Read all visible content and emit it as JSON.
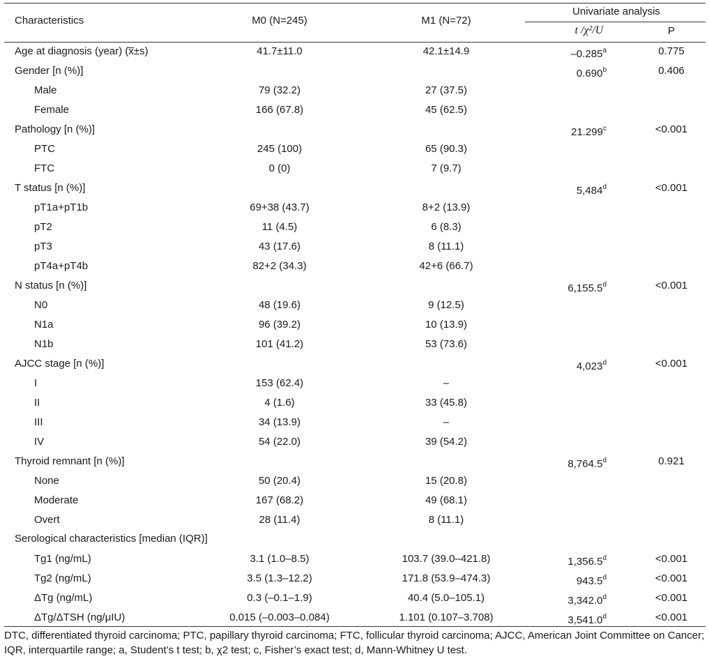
{
  "header": {
    "characteristics": "Characteristics",
    "m0": "M0 (N=245)",
    "m1": "M1 (N=72)",
    "univariate": "Univariate analysis",
    "stat_label": "t /χ²/U",
    "p_label": "P"
  },
  "rows": [
    {
      "label": "Age at diagnosis (year) (x̅±s)",
      "indent": false,
      "m0": "41.7±11.0",
      "m1": "42.1±14.9",
      "stat": "–0.285",
      "sup": "a",
      "p": "0.775"
    },
    {
      "label": "Gender [n (%)]",
      "indent": false,
      "m0": "",
      "m1": "",
      "stat": "0.690",
      "sup": "b",
      "p": "0.406"
    },
    {
      "label": "Male",
      "indent": true,
      "m0": "79 (32.2)",
      "m1": "27 (37.5)",
      "stat": "",
      "sup": "",
      "p": ""
    },
    {
      "label": "Female",
      "indent": true,
      "m0": "166 (67.8)",
      "m1": "45 (62.5)",
      "stat": "",
      "sup": "",
      "p": ""
    },
    {
      "label": "Pathology [n (%)]",
      "indent": false,
      "m0": "",
      "m1": "",
      "stat": "21.299",
      "sup": "c",
      "p": "<0.001"
    },
    {
      "label": "PTC",
      "indent": true,
      "m0": "245 (100)",
      "m1": "65 (90.3)",
      "stat": "",
      "sup": "",
      "p": ""
    },
    {
      "label": "FTC",
      "indent": true,
      "m0": "0 (0)",
      "m1": "7 (9.7)",
      "stat": "",
      "sup": "",
      "p": ""
    },
    {
      "label": "T status [n (%)]",
      "indent": false,
      "m0": "",
      "m1": "",
      "stat": "5,484",
      "sup": "d",
      "p": "<0.001"
    },
    {
      "label": "pT1a+pT1b",
      "indent": true,
      "m0": "69+38 (43.7)",
      "m1": "8+2 (13.9)",
      "stat": "",
      "sup": "",
      "p": ""
    },
    {
      "label": "pT2",
      "indent": true,
      "m0": "11 (4.5)",
      "m1": "6 (8.3)",
      "stat": "",
      "sup": "",
      "p": ""
    },
    {
      "label": "pT3",
      "indent": true,
      "m0": "43 (17.6)",
      "m1": "8 (11.1)",
      "stat": "",
      "sup": "",
      "p": ""
    },
    {
      "label": "pT4a+pT4b",
      "indent": true,
      "m0": "82+2 (34.3)",
      "m1": "42+6 (66.7)",
      "stat": "",
      "sup": "",
      "p": ""
    },
    {
      "label": "N status [n (%)]",
      "indent": false,
      "m0": "",
      "m1": "",
      "stat": "6,155.5",
      "sup": "d",
      "p": "<0.001"
    },
    {
      "label": "N0",
      "indent": true,
      "m0": "48 (19.6)",
      "m1": "9 (12.5)",
      "stat": "",
      "sup": "",
      "p": ""
    },
    {
      "label": "N1a",
      "indent": true,
      "m0": "96 (39.2)",
      "m1": "10 (13.9)",
      "stat": "",
      "sup": "",
      "p": ""
    },
    {
      "label": "N1b",
      "indent": true,
      "m0": "101 (41.2)",
      "m1": "53 (73.6)",
      "stat": "",
      "sup": "",
      "p": ""
    },
    {
      "label": "AJCC stage [n (%)]",
      "indent": false,
      "m0": "",
      "m1": "",
      "stat": "4,023",
      "sup": "d",
      "p": "<0.001"
    },
    {
      "label": "I",
      "indent": true,
      "m0": "153 (62.4)",
      "m1": "–",
      "stat": "",
      "sup": "",
      "p": ""
    },
    {
      "label": "II",
      "indent": true,
      "m0": "4 (1.6)",
      "m1": "33 (45.8)",
      "stat": "",
      "sup": "",
      "p": ""
    },
    {
      "label": "III",
      "indent": true,
      "m0": "34 (13.9)",
      "m1": "–",
      "stat": "",
      "sup": "",
      "p": ""
    },
    {
      "label": "IV",
      "indent": true,
      "m0": "54 (22.0)",
      "m1": "39 (54.2)",
      "stat": "",
      "sup": "",
      "p": ""
    },
    {
      "label": "Thyroid remnant [n (%)]",
      "indent": false,
      "m0": "",
      "m1": "",
      "stat": "8,764.5",
      "sup": "d",
      "p": "0.921"
    },
    {
      "label": "None",
      "indent": true,
      "m0": "50 (20.4)",
      "m1": "15 (20.8)",
      "stat": "",
      "sup": "",
      "p": ""
    },
    {
      "label": "Moderate",
      "indent": true,
      "m0": "167 (68.2)",
      "m1": "49 (68.1)",
      "stat": "",
      "sup": "",
      "p": ""
    },
    {
      "label": "Overt",
      "indent": true,
      "m0": "28 (11.4)",
      "m1": "8 (11.1)",
      "stat": "",
      "sup": "",
      "p": ""
    },
    {
      "label": "Serological characteristics [median (IQR)]",
      "indent": false,
      "m0": "",
      "m1": "",
      "stat": "",
      "sup": "",
      "p": ""
    },
    {
      "label": "Tg1 (ng/mL)",
      "indent": true,
      "m0": "3.1 (1.0–8.5)",
      "m1": "103.7 (39.0–421.8)",
      "stat": "1,356.5",
      "sup": "d",
      "p": "<0.001"
    },
    {
      "label": "Tg2 (ng/mL)",
      "indent": true,
      "m0": "3.5 (1.3–12.2)",
      "m1": "171.8 (53.9–474.3)",
      "stat": "943.5",
      "sup": "d",
      "p": "<0.001"
    },
    {
      "label": "ΔTg (ng/mL)",
      "indent": true,
      "m0": "0.3 (–0.1–1.9)",
      "m1": "40.4 (5.0–105.1)",
      "stat": "3,342.0",
      "sup": "d",
      "p": "<0.001"
    },
    {
      "label": "ΔTg/ΔTSH (ng/μIU)",
      "indent": true,
      "m0": "0.015 (–0.003–0.084)",
      "m1": "1.101 (0.107–3.708)",
      "stat": "3,541.0",
      "sup": "d",
      "p": "<0.001"
    }
  ],
  "footnote": "DTC, differentiated thyroid carcinoma; PTC, papillary thyroid carcinoma; FTC, follicular thyroid carcinoma; AJCC, American Joint Committee on Cancer; IQR, interquartile range; a, Student’s t test; b, χ2 test; c, Fisher’s exact test; d, Mann-Whitney U test."
}
